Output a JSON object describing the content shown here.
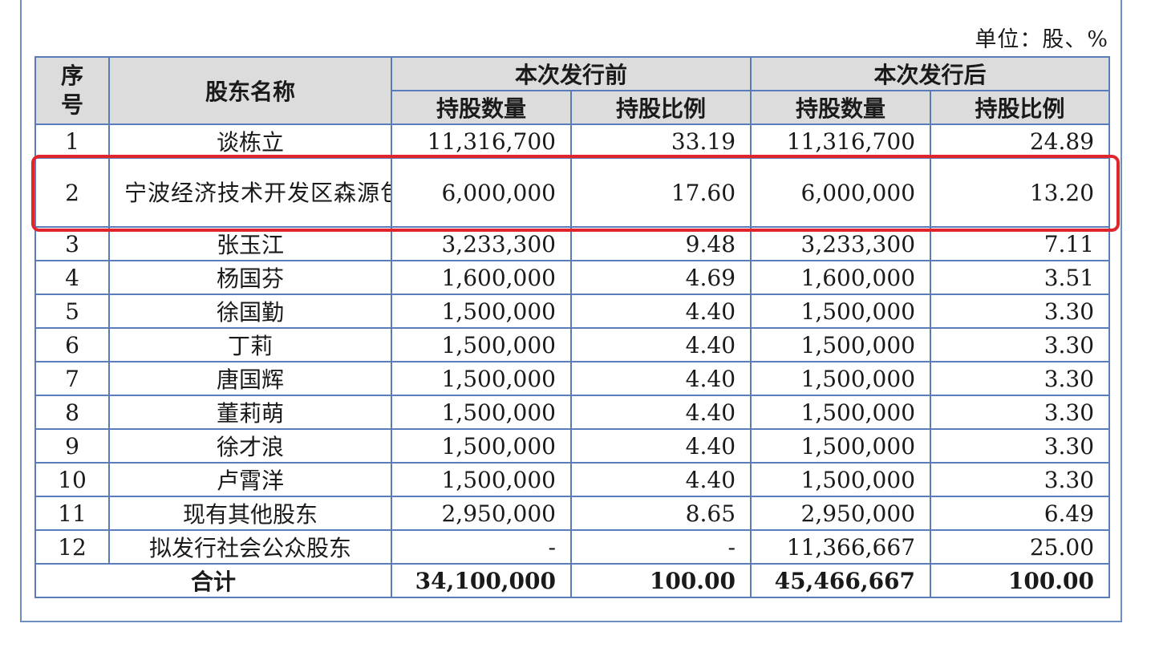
{
  "unit_note": "单位：股、%",
  "header": {
    "seq": "序号",
    "name": "股东名称",
    "before_group": "本次发行前",
    "after_group": "本次发行后",
    "shares_count": "持股数量",
    "shares_ratio": "持股比例"
  },
  "rows": [
    {
      "seq": "1",
      "name": "谈栋立",
      "before_shares": "11,316,700",
      "before_ratio": "33.19",
      "after_shares": "11,316,700",
      "after_ratio": "24.89"
    },
    {
      "seq": "2",
      "name": "宁波经济技术开发区森源包装材料有限公司",
      "before_shares": "6,000,000",
      "before_ratio": "17.60",
      "after_shares": "6,000,000",
      "after_ratio": "13.20"
    },
    {
      "seq": "3",
      "name": "张玉江",
      "before_shares": "3,233,300",
      "before_ratio": "9.48",
      "after_shares": "3,233,300",
      "after_ratio": "7.11"
    },
    {
      "seq": "4",
      "name": "杨国芬",
      "before_shares": "1,600,000",
      "before_ratio": "4.69",
      "after_shares": "1,600,000",
      "after_ratio": "3.51"
    },
    {
      "seq": "5",
      "name": "徐国勤",
      "before_shares": "1,500,000",
      "before_ratio": "4.40",
      "after_shares": "1,500,000",
      "after_ratio": "3.30"
    },
    {
      "seq": "6",
      "name": "丁莉",
      "before_shares": "1,500,000",
      "before_ratio": "4.40",
      "after_shares": "1,500,000",
      "after_ratio": "3.30"
    },
    {
      "seq": "7",
      "name": "唐国辉",
      "before_shares": "1,500,000",
      "before_ratio": "4.40",
      "after_shares": "1,500,000",
      "after_ratio": "3.30"
    },
    {
      "seq": "8",
      "name": "董莉萌",
      "before_shares": "1,500,000",
      "before_ratio": "4.40",
      "after_shares": "1,500,000",
      "after_ratio": "3.30"
    },
    {
      "seq": "9",
      "name": "徐才浪",
      "before_shares": "1,500,000",
      "before_ratio": "4.40",
      "after_shares": "1,500,000",
      "after_ratio": "3.30"
    },
    {
      "seq": "10",
      "name": "卢霄洋",
      "before_shares": "1,500,000",
      "before_ratio": "4.40",
      "after_shares": "1,500,000",
      "after_ratio": "3.30"
    },
    {
      "seq": "11",
      "name": "现有其他股东",
      "before_shares": "2,950,000",
      "before_ratio": "8.65",
      "after_shares": "2,950,000",
      "after_ratio": "6.49"
    },
    {
      "seq": "12",
      "name": "拟发行社会公众股东",
      "before_shares": "-",
      "before_ratio": "-",
      "after_shares": "11,366,667",
      "after_ratio": "25.00"
    }
  ],
  "total": {
    "label": "合计",
    "before_shares": "34,100,000",
    "before_ratio": "100.00",
    "after_shares": "45,466,667",
    "after_ratio": "100.00"
  },
  "highlight_color": "#e0262c",
  "border_color": "#5b7cba",
  "header_bg": "#dcdcdc"
}
